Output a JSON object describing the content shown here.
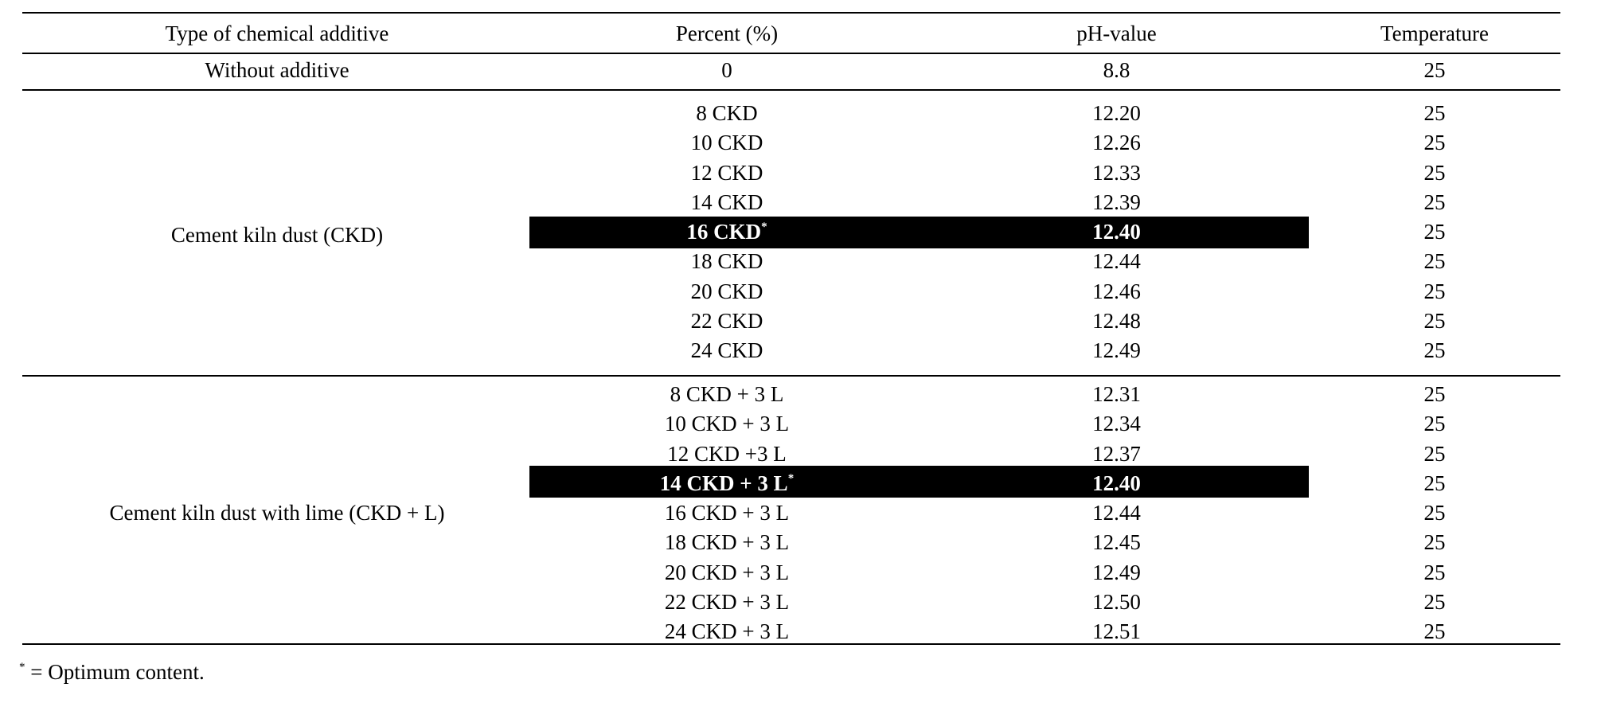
{
  "table": {
    "headers": [
      "Type of chemical additive",
      "Percent (%)",
      "pH-value",
      "Temperature"
    ],
    "control": {
      "type": "Without additive",
      "percent": "0",
      "ph": "8.8",
      "temperature": "25"
    },
    "groups": [
      {
        "type": "Cement kiln dust (CKD)",
        "rows": [
          {
            "percent": "8 CKD",
            "ph": "12.20",
            "temperature": "25"
          },
          {
            "percent": "10 CKD",
            "ph": "12.26",
            "temperature": "25"
          },
          {
            "percent": "12 CKD",
            "ph": "12.33",
            "temperature": "25"
          },
          {
            "percent": "14 CKD",
            "ph": "12.39",
            "temperature": "25"
          },
          {
            "percent": "16 CKD",
            "ph": "12.40",
            "temperature": "25",
            "optimum": true
          },
          {
            "percent": "18 CKD",
            "ph": "12.44",
            "temperature": "25"
          },
          {
            "percent": "20 CKD",
            "ph": "12.46",
            "temperature": "25"
          },
          {
            "percent": "22 CKD",
            "ph": "12.48",
            "temperature": "25"
          },
          {
            "percent": "24 CKD",
            "ph": "12.49",
            "temperature": "25"
          }
        ]
      },
      {
        "type": "Cement kiln dust with lime (CKD + L)",
        "rows": [
          {
            "percent": "8 CKD + 3 L",
            "ph": "12.31",
            "temperature": "25"
          },
          {
            "percent": "10 CKD + 3 L",
            "ph": "12.34",
            "temperature": "25"
          },
          {
            "percent": "12 CKD +3 L",
            "ph": "12.37",
            "temperature": "25"
          },
          {
            "percent": "14 CKD + 3 L",
            "ph": "12.40",
            "temperature": "25",
            "optimum": true
          },
          {
            "percent": "16 CKD + 3 L",
            "ph": "12.44",
            "temperature": "25"
          },
          {
            "percent": "18 CKD + 3 L",
            "ph": "12.45",
            "temperature": "25"
          },
          {
            "percent": "20 CKD + 3 L",
            "ph": "12.49",
            "temperature": "25"
          },
          {
            "percent": "22 CKD + 3 L",
            "ph": "12.50",
            "temperature": "25"
          },
          {
            "percent": "24 CKD + 3 L",
            "ph": "12.51",
            "temperature": "25"
          }
        ]
      }
    ],
    "optimum_marker": "*"
  },
  "footnote": {
    "marker": "*",
    "text": " = Optimum content."
  },
  "colors": {
    "text": "#000000",
    "highlight_bg": "#000000",
    "highlight_text": "#ffffff"
  }
}
